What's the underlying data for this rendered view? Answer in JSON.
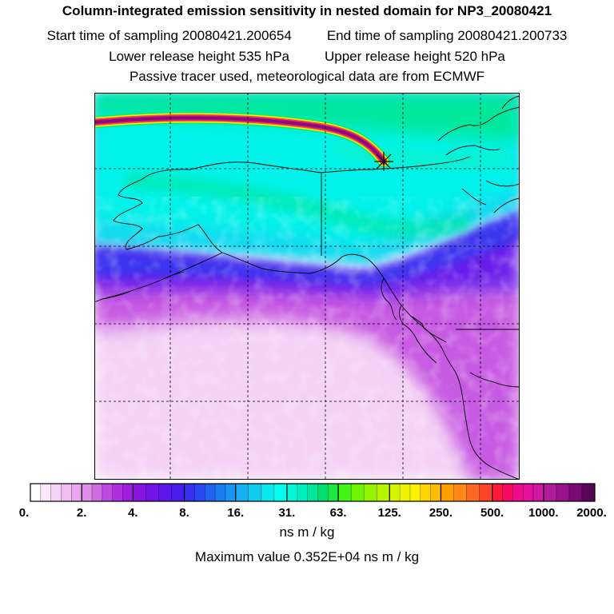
{
  "title": "Column-integrated emission sensitivity in nested domain for NP3_20080421",
  "start_label": "Start time of sampling 20080421.200654",
  "end_label": "End time of sampling 20080421.200733",
  "lower_label": "Lower release height  535 hPa",
  "upper_label": "Upper release height  520 hPa",
  "subtitle": "Passive tracer used, meteorological data are from ECMWF",
  "colorbar": {
    "unit": "ns m / kg",
    "tick_labels": [
      "0.",
      "2.",
      "4.",
      "8.",
      "16.",
      "31.",
      "63.",
      "125.",
      "250.",
      "500.",
      "1000.",
      "2000."
    ],
    "colors": [
      "#ffffff",
      "#fbe9fb",
      "#f6d4f6",
      "#f0bff0",
      "#e9a8ee",
      "#de8ce8",
      "#cf6be4",
      "#bf4ae0",
      "#b030e0",
      "#9f1ddf",
      "#8a14e2",
      "#7414e6",
      "#5e16ea",
      "#4a1cee",
      "#3830f0",
      "#2a48f2",
      "#2262f2",
      "#1a7cf2",
      "#1896f2",
      "#14b0f0",
      "#10ccf0",
      "#0ce6ee",
      "#00ffee",
      "#00f6d8",
      "#00eebc",
      "#00e69c",
      "#00e070",
      "#1ae840",
      "#44f414",
      "#6ef400",
      "#94f400",
      "#b6f400",
      "#d4f400",
      "#eef400",
      "#fff000",
      "#ffd400",
      "#ffbc00",
      "#ffa000",
      "#ff8818",
      "#ff6824",
      "#ff4228",
      "#ff1838",
      "#f80a64",
      "#f00a88",
      "#e2109c",
      "#d018a4",
      "#b41a9c",
      "#98128e",
      "#7a0a78",
      "#5a0658"
    ]
  },
  "max_value_label": "Maximum value  0.352E+04 ns m / kg"
}
